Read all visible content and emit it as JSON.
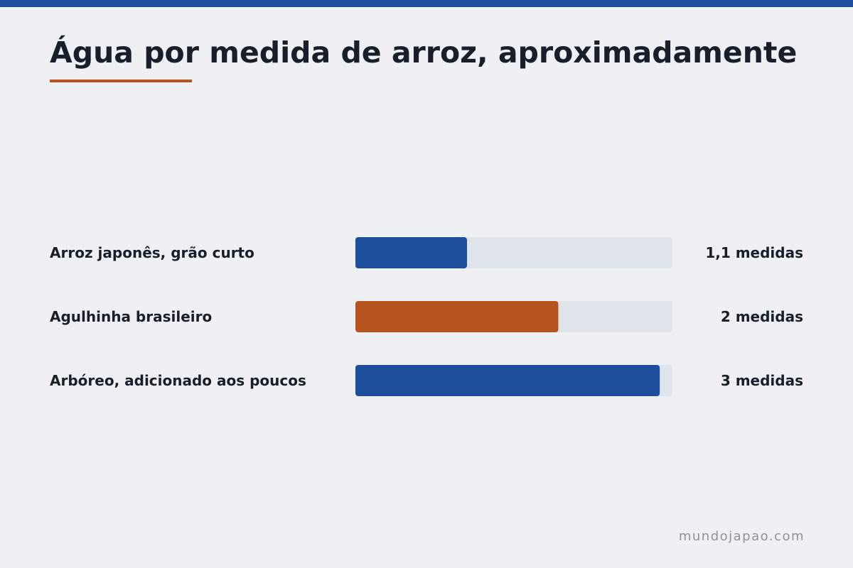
{
  "title": "Água por medida de arroz, aproximadamente",
  "footer": "mundojapao.com",
  "colors": {
    "primary": "#1d4f9c",
    "accent": "#b5541f",
    "track": "#dfe3ea",
    "text": "#17202a",
    "muted": "#8e939a"
  },
  "chart_data": {
    "type": "bar",
    "orientation": "horizontal",
    "title": "Água por medida de arroz, aproximadamente",
    "categories": [
      "Arroz japonês, grão curto",
      "Agulhinha brasileiro",
      "Arbóreo, adicionado aos poucos"
    ],
    "values": [
      1.1,
      2,
      3
    ],
    "value_labels": [
      "1,1 medidas",
      "2 medidas",
      "3 medidas"
    ],
    "bar_colors": [
      "#1d4f9c",
      "#b5541f",
      "#1d4f9c"
    ],
    "xlim": [
      0,
      3.125
    ],
    "grid": false,
    "legend": "none"
  }
}
